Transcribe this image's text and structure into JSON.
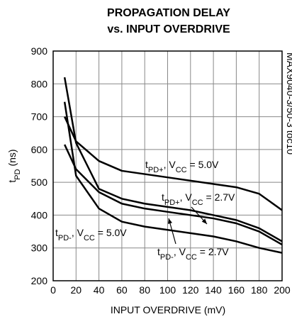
{
  "chart_data": {
    "type": "line",
    "title": [
      "PROPAGATION DELAY",
      "vs. INPUT OVERDRIVE"
    ],
    "xlabel": "INPUT OVERDRIVE (mV)",
    "ylabel": [
      {
        "text": "t"
      },
      {
        "text": "PD",
        "sub": true
      },
      {
        "text": " (ns)"
      }
    ],
    "side_note": "MAX9040-3/50-3 toc10",
    "xlim": [
      0,
      200
    ],
    "xticks": [
      0,
      20,
      40,
      60,
      80,
      100,
      120,
      140,
      160,
      180,
      200
    ],
    "ylim": [
      200,
      900
    ],
    "yticks": [
      200,
      300,
      400,
      500,
      600,
      700,
      800,
      900
    ],
    "grid": true,
    "series": [
      {
        "label": [
          {
            "text": "t"
          },
          {
            "text": "PD+",
            "sub": true
          },
          {
            "text": ", V"
          },
          {
            "text": "CC",
            "sub": true
          },
          {
            "text": " = 5.0V"
          }
        ],
        "color": "#000000",
        "x": [
          10,
          20,
          40,
          60,
          100,
          140,
          160,
          180,
          200
        ],
        "values": [
          700,
          625,
          565,
          535,
          515,
          495,
          485,
          465,
          415
        ]
      },
      {
        "label": [
          {
            "text": "t"
          },
          {
            "text": "PD+",
            "sub": true
          },
          {
            "text": ", V"
          },
          {
            "text": "CC",
            "sub": true
          },
          {
            "text": " = 2.7V"
          }
        ],
        "color": "#000000",
        "x": [
          10,
          20,
          40,
          60,
          80,
          100,
          120,
          140,
          160,
          180,
          200
        ],
        "values": [
          820,
          620,
          480,
          450,
          435,
          425,
          415,
          400,
          385,
          360,
          320
        ]
      },
      {
        "label": [
          {
            "text": "t"
          },
          {
            "text": "PD-",
            "sub": true
          },
          {
            "text": ", V"
          },
          {
            "text": "CC",
            "sub": true
          },
          {
            "text": " = 5.0V"
          }
        ],
        "color": "#000000",
        "x": [
          10,
          20,
          40,
          60,
          80,
          100,
          120,
          140,
          160,
          180,
          200
        ],
        "values": [
          615,
          540,
          470,
          435,
          420,
          410,
          400,
          390,
          375,
          350,
          310
        ]
      },
      {
        "label": [
          {
            "text": "t"
          },
          {
            "text": "PD-",
            "sub": true
          },
          {
            "text": ", V"
          },
          {
            "text": "CC",
            "sub": true
          },
          {
            "text": " = 2.7V"
          }
        ],
        "color": "#000000",
        "x": [
          10,
          20,
          40,
          60,
          80,
          100,
          120,
          140,
          160,
          180,
          200
        ],
        "values": [
          745,
          520,
          420,
          380,
          365,
          355,
          345,
          335,
          320,
          300,
          285
        ]
      }
    ]
  }
}
